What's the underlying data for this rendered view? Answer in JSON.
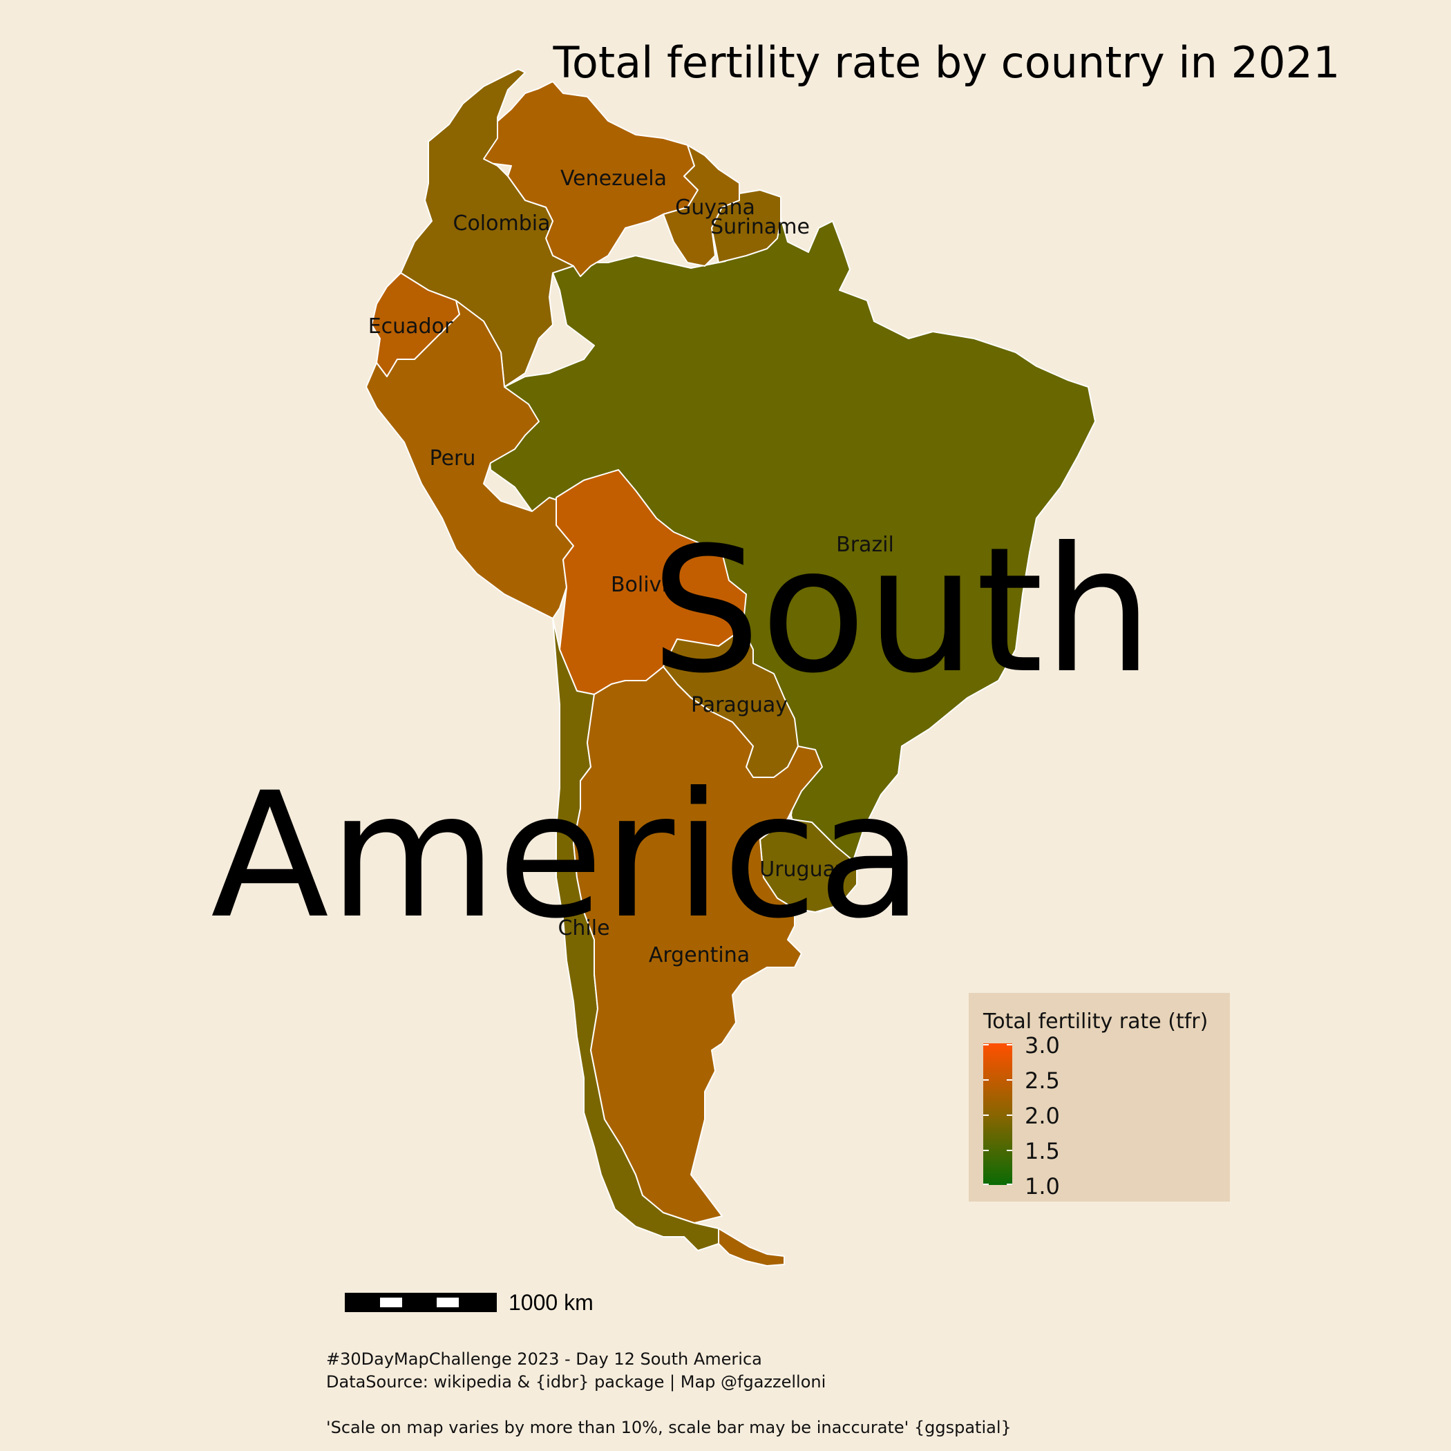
{
  "title": "Total fertility rate by country in 2021",
  "big_label": {
    "line1": "South",
    "line2": "America"
  },
  "colors": {
    "background": "#f5ecdc",
    "legend_background": "#e6d3b9",
    "scale_low": "#0a6b05",
    "scale_mid": "#8a6500",
    "scale_high": "#ff5000"
  },
  "countries": [
    {
      "name": "Venezuela",
      "color": "#ad6200"
    },
    {
      "name": "Colombia",
      "color": "#8c6400"
    },
    {
      "name": "Guyana",
      "color": "#986400"
    },
    {
      "name": "Suriname",
      "color": "#8e6400"
    },
    {
      "name": "Ecuador",
      "color": "#b85f00"
    },
    {
      "name": "Peru",
      "color": "#a86300"
    },
    {
      "name": "Brazil",
      "color": "#686700"
    },
    {
      "name": "Bolivia",
      "color": "#c25e00"
    },
    {
      "name": "Paraguay",
      "color": "#8f6400"
    },
    {
      "name": "Uruguay",
      "color": "#7a6600"
    },
    {
      "name": "Argentina",
      "color": "#a86300"
    },
    {
      "name": "Chile",
      "color": "#7a6600"
    }
  ],
  "legend": {
    "title": "Total fertility rate (tfr)",
    "ticks": [
      "3.0",
      "2.5",
      "2.0",
      "1.5",
      "1.0"
    ]
  },
  "scale_bar": {
    "label": "1000 km"
  },
  "caption": {
    "line1": "#30DayMapChallenge 2023 - Day 12 South America",
    "line2": "DataSource: wikipedia & {idbr} package | Map @fgazzelloni",
    "line3": "'Scale on map varies by more than 10%, scale bar may be inaccurate' {ggspatial}"
  }
}
